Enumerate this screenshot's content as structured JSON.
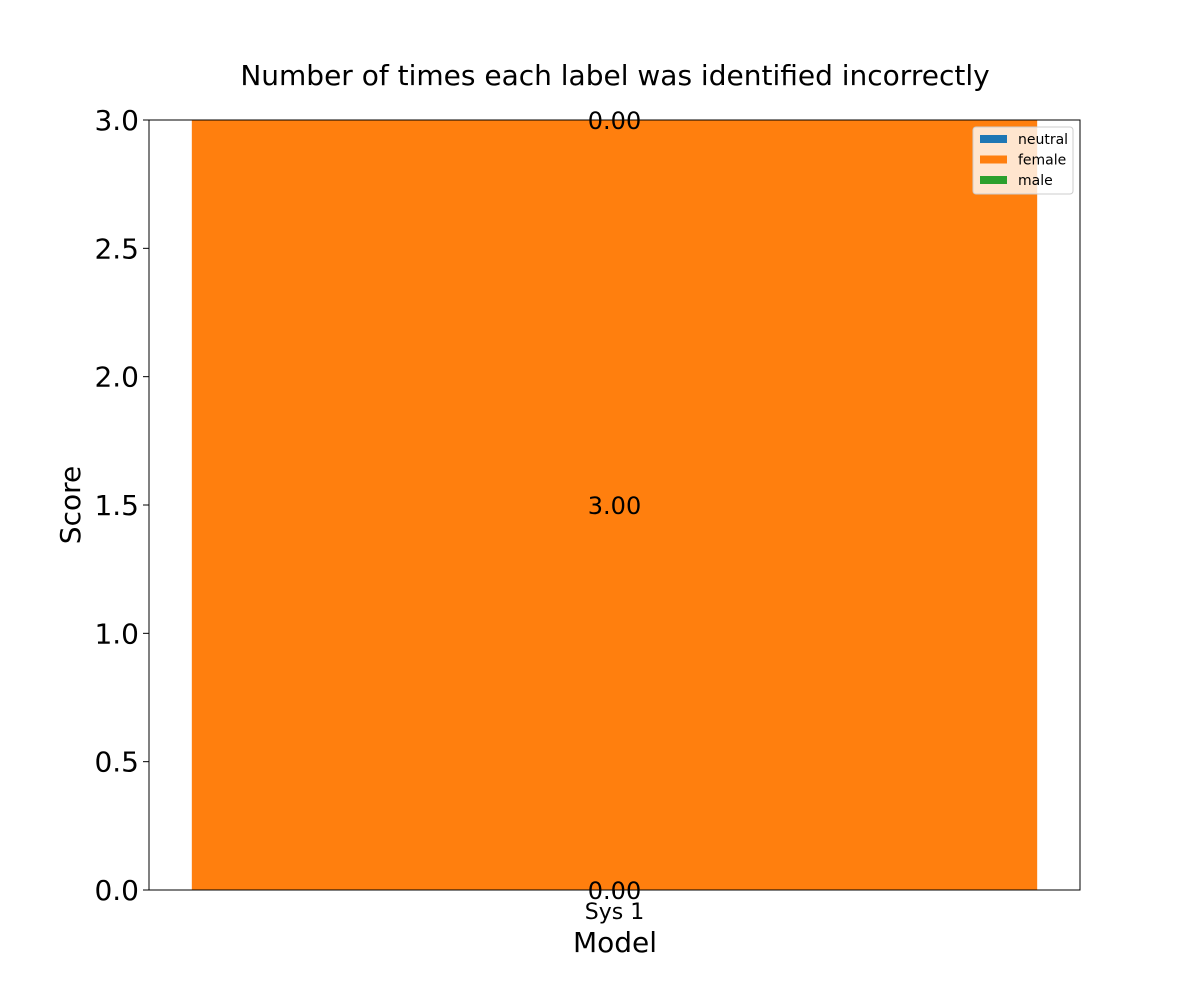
{
  "chart_data": {
    "type": "bar",
    "stacked": true,
    "title": "Number of times each label was identified incorrectly",
    "xlabel": "Model",
    "ylabel": "Score",
    "categories": [
      "Sys 1"
    ],
    "series": [
      {
        "name": "neutral",
        "values": [
          0.0
        ],
        "color": "#1f77b4"
      },
      {
        "name": "female",
        "values": [
          3.0
        ],
        "color": "#ff7f0e"
      },
      {
        "name": "male",
        "values": [
          0.0
        ],
        "color": "#2ca02c"
      }
    ],
    "ylim": [
      0,
      3.0
    ],
    "yticks": [
      "0.0",
      "0.5",
      "1.0",
      "1.5",
      "2.0",
      "2.5",
      "3.0"
    ],
    "bar_labels": [
      "0.00",
      "3.00",
      "0.00"
    ],
    "grid": false,
    "legend_position": "top-right"
  }
}
